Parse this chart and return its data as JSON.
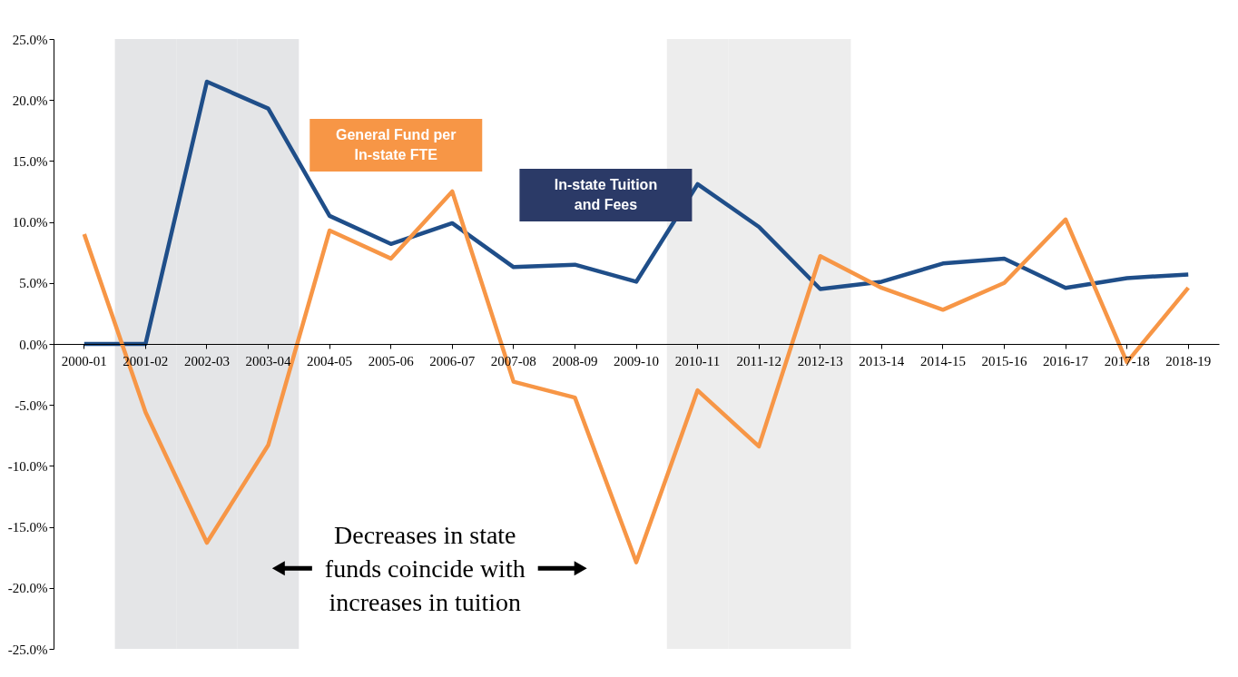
{
  "chart_data": {
    "type": "line",
    "categories": [
      "2000-01",
      "2001-02",
      "2002-03",
      "2003-04",
      "2004-05",
      "2005-06",
      "2006-07",
      "2007-08",
      "2008-09",
      "2009-10",
      "2010-11",
      "2011-12",
      "2012-13",
      "2013-14",
      "2014-15",
      "2015-16",
      "2016-17",
      "2017-18",
      "2018-19"
    ],
    "series": [
      {
        "name": "In-state Tuition and Fees",
        "color": "#1f4e89",
        "values": [
          0,
          0,
          21.5,
          19.3,
          10.5,
          8.2,
          9.9,
          6.3,
          6.5,
          5.1,
          13.1,
          9.6,
          4.5,
          5.1,
          6.6,
          7.0,
          4.6,
          5.4,
          5.7
        ]
      },
      {
        "name": "General Fund per In-state FTE",
        "color": "#f79646",
        "values": [
          9.0,
          -5.6,
          -16.3,
          -8.3,
          9.3,
          7.0,
          12.5,
          -3.1,
          -4.4,
          -17.9,
          -3.8,
          -8.4,
          7.2,
          4.6,
          2.8,
          5.0,
          10.2,
          -1.5,
          4.6
        ]
      }
    ],
    "ylim": [
      -25,
      25
    ],
    "yticks": [
      {
        "value": -25,
        "label": "-25.0%"
      },
      {
        "value": -20,
        "label": "-20.0%"
      },
      {
        "value": -15,
        "label": "-15.0%"
      },
      {
        "value": -10,
        "label": "-10.0%"
      },
      {
        "value": -5,
        "label": "-5.0%"
      },
      {
        "value": 0,
        "label": "0.0%"
      },
      {
        "value": 5,
        "label": "5.0%"
      },
      {
        "value": 10,
        "label": "10.0%"
      },
      {
        "value": 15,
        "label": "15.0%"
      },
      {
        "value": 20,
        "label": "20.0%"
      },
      {
        "value": 25,
        "label": "25.0%"
      }
    ],
    "bands": [
      {
        "axis": "x",
        "from": "2001-02",
        "to": "2003-04",
        "color": "#e4e5e7"
      },
      {
        "axis": "x",
        "from": "2010-11",
        "to": "2012-13",
        "color": "#ededed"
      }
    ],
    "annotations": [
      "Decreases in state funds coincide with increases in tuition"
    ],
    "grid": false,
    "marker": "none",
    "line_style": "solid"
  }
}
